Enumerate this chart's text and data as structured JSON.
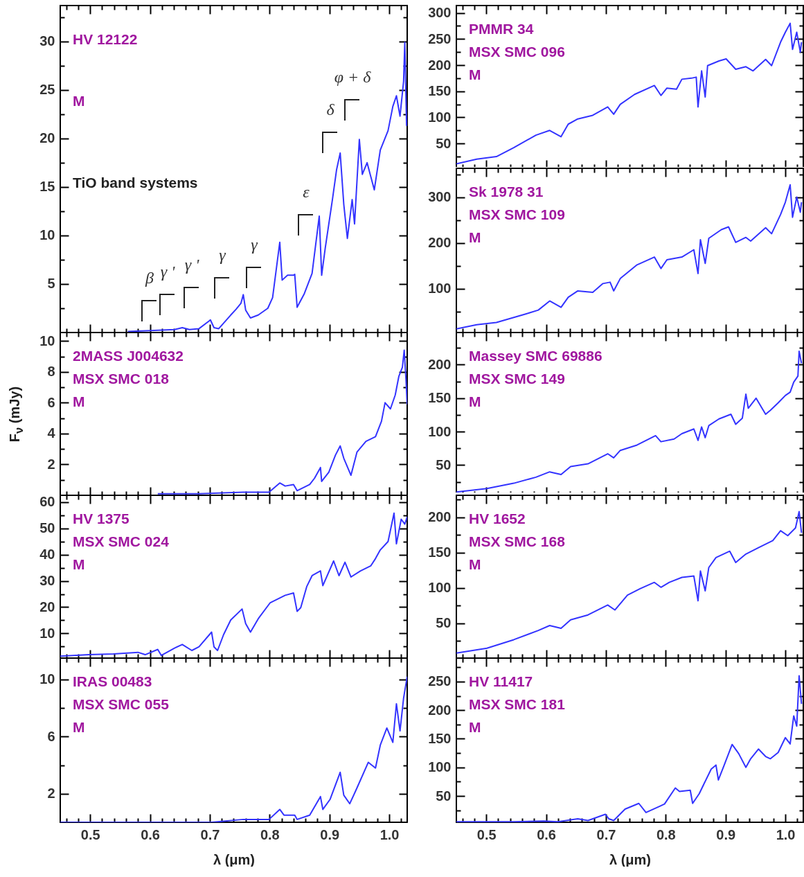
{
  "chart_data": [
    {
      "type": "line",
      "annotations": [
        "HV 12122",
        "M",
        "TiO band systems",
        "β",
        "γ '",
        "γ '",
        "γ",
        "γ",
        "ε",
        "δ",
        "φ + δ"
      ],
      "x": [
        0.563,
        0.6,
        0.641,
        0.654,
        0.666,
        0.682,
        0.699,
        0.701,
        0.707,
        0.715,
        0.735,
        0.744,
        0.752,
        0.756,
        0.76,
        0.768,
        0.781,
        0.797,
        0.805,
        0.817,
        0.821,
        0.83,
        0.84,
        0.842,
        0.846,
        0.858,
        0.871,
        0.883,
        0.887,
        0.893,
        0.905,
        0.912,
        0.918,
        0.924,
        0.93,
        0.938,
        0.942,
        0.95,
        0.955,
        0.963,
        0.975,
        0.985,
        0.998,
        1.006,
        1.012,
        1.018,
        1.024,
        1.026,
        1.029
      ],
      "series": [
        {
          "color": "#3333ff",
          "values": [
            0.1,
            0.2,
            0.3,
            0.5,
            0.3,
            0.4,
            1.2,
            1.3,
            0.5,
            0.4,
            1.8,
            2.4,
            3.0,
            3.9,
            2.3,
            1.5,
            1.8,
            2.5,
            3.6,
            9.3,
            5.4,
            5.9,
            5.9,
            6.0,
            2.6,
            4.0,
            6.1,
            12.0,
            5.9,
            8.7,
            13.7,
            16.8,
            18.5,
            13.2,
            9.7,
            13.7,
            11.2,
            19.9,
            16.3,
            17.5,
            14.7,
            18.8,
            20.8,
            23.3,
            24.4,
            22.3,
            25.9,
            29.9,
            21.3
          ]
        }
      ],
      "xlim": [
        0.45,
        1.03
      ],
      "ylim": [
        0,
        33.7
      ],
      "xticks": [
        {
          "value": 0.46,
          "label": null
        },
        {
          "value": 0.48,
          "label": null
        },
        0.5,
        {
          "value": 0.52,
          "label": null
        },
        {
          "value": 0.54,
          "label": null
        },
        {
          "value": 0.56,
          "label": null
        },
        {
          "value": 0.58,
          "label": null
        },
        0.6,
        {
          "value": 0.62,
          "label": null
        },
        {
          "value": 0.64,
          "label": null
        },
        {
          "value": 0.66,
          "label": null
        },
        {
          "value": 0.68,
          "label": null
        },
        0.7,
        {
          "value": 0.72,
          "label": null
        },
        {
          "value": 0.74,
          "label": null
        },
        {
          "value": 0.76,
          "label": null
        },
        {
          "value": 0.78,
          "label": null
        },
        0.8,
        {
          "value": 0.82,
          "label": null
        },
        {
          "value": 0.84,
          "label": null
        },
        {
          "value": 0.86,
          "label": null
        },
        {
          "value": 0.88,
          "label": null
        },
        0.9,
        {
          "value": 0.92,
          "label": null
        },
        {
          "value": 0.94,
          "label": null
        },
        {
          "value": 0.96,
          "label": null
        },
        {
          "value": 0.98,
          "label": null
        },
        1,
        {
          "value": 1.02,
          "label": null
        }
      ],
      "yticks": [
        {
          "value": 2.5,
          "label": null
        },
        5,
        {
          "value": 7.5,
          "label": null
        },
        10,
        {
          "value": 12.5,
          "label": null
        },
        15,
        {
          "value": 17.5,
          "label": null
        },
        20,
        {
          "value": 22.5,
          "label": null
        },
        25,
        {
          "value": 27.5,
          "label": null
        },
        30,
        {
          "value": 32.5,
          "label": null
        }
      ],
      "tick_labels": "y"
    },
    {
      "type": "line",
      "annotations": [
        "PMMR 34",
        "MSX SMC 096",
        "M"
      ],
      "x": [
        0.45,
        0.484,
        0.517,
        0.546,
        0.583,
        0.606,
        0.625,
        0.637,
        0.653,
        0.678,
        0.703,
        0.713,
        0.724,
        0.748,
        0.781,
        0.792,
        0.802,
        0.818,
        0.827,
        0.843,
        0.851,
        0.854,
        0.86,
        0.866,
        0.87,
        0.889,
        0.901,
        0.917,
        0.934,
        0.946,
        0.967,
        0.977,
        0.992,
        1.0,
        1.008,
        1.012,
        1.019,
        1.025,
        1.027
      ],
      "series": [
        {
          "color": "#3333ff",
          "values": [
            11,
            20,
            25,
            42,
            66,
            75,
            63,
            87,
            97,
            104,
            120,
            106,
            125,
            144,
            161,
            142,
            156,
            154,
            173,
            175,
            177,
            120,
            189,
            139,
            199,
            208,
            212,
            192,
            197,
            189,
            211,
            199,
            244,
            263,
            280,
            230,
            263,
            225,
            244
          ]
        }
      ],
      "xlim": [
        0.45,
        1.03
      ],
      "ylim": [
        2.5,
        314
      ],
      "xticks": [
        {
          "value": 0.46,
          "label": null
        },
        {
          "value": 0.48,
          "label": null
        },
        0.5,
        {
          "value": 0.52,
          "label": null
        },
        {
          "value": 0.54,
          "label": null
        },
        {
          "value": 0.56,
          "label": null
        },
        {
          "value": 0.58,
          "label": null
        },
        0.6,
        {
          "value": 0.62,
          "label": null
        },
        {
          "value": 0.64,
          "label": null
        },
        {
          "value": 0.66,
          "label": null
        },
        {
          "value": 0.68,
          "label": null
        },
        0.7,
        {
          "value": 0.72,
          "label": null
        },
        {
          "value": 0.74,
          "label": null
        },
        {
          "value": 0.76,
          "label": null
        },
        {
          "value": 0.78,
          "label": null
        },
        0.8,
        {
          "value": 0.82,
          "label": null
        },
        {
          "value": 0.84,
          "label": null
        },
        {
          "value": 0.86,
          "label": null
        },
        {
          "value": 0.88,
          "label": null
        },
        0.9,
        {
          "value": 0.92,
          "label": null
        },
        {
          "value": 0.94,
          "label": null
        },
        {
          "value": 0.96,
          "label": null
        },
        {
          "value": 0.98,
          "label": null
        },
        1,
        {
          "value": 1.02,
          "label": null
        }
      ],
      "yticks": [
        {
          "value": 25,
          "label": null
        },
        50,
        {
          "value": 75,
          "label": null
        },
        100,
        {
          "value": 125,
          "label": null
        },
        150,
        {
          "value": 175,
          "label": null
        },
        200,
        {
          "value": 225,
          "label": null
        },
        250,
        {
          "value": 275,
          "label": null
        },
        300
      ],
      "tick_labels": "y"
    },
    {
      "type": "line",
      "annotations": [
        "Sk 1978 31",
        "MSX SMC 109",
        "M"
      ],
      "x": [
        0.45,
        0.484,
        0.517,
        0.567,
        0.587,
        0.606,
        0.625,
        0.637,
        0.653,
        0.678,
        0.695,
        0.707,
        0.713,
        0.724,
        0.752,
        0.781,
        0.792,
        0.802,
        0.827,
        0.847,
        0.854,
        0.858,
        0.866,
        0.872,
        0.893,
        0.905,
        0.917,
        0.934,
        0.942,
        0.967,
        0.977,
        0.992,
        1.0,
        1.008,
        1.012,
        1.019,
        1.025,
        1.027
      ],
      "series": [
        {
          "color": "#3333ff",
          "values": [
            12,
            21,
            26,
            45,
            53,
            73,
            59,
            81,
            95,
            92,
            111,
            114,
            95,
            122,
            152,
            169,
            144,
            163,
            169,
            185,
            133,
            207,
            155,
            210,
            229,
            235,
            201,
            212,
            204,
            233,
            220,
            262,
            289,
            327,
            256,
            300,
            267,
            289
          ]
        }
      ],
      "xlim": [
        0.45,
        1.03
      ],
      "ylim": [
        4,
        363
      ],
      "xticks": [
        {
          "value": 0.46,
          "label": null
        },
        {
          "value": 0.48,
          "label": null
        },
        0.5,
        {
          "value": 0.52,
          "label": null
        },
        {
          "value": 0.54,
          "label": null
        },
        {
          "value": 0.56,
          "label": null
        },
        {
          "value": 0.58,
          "label": null
        },
        0.6,
        {
          "value": 0.62,
          "label": null
        },
        {
          "value": 0.64,
          "label": null
        },
        {
          "value": 0.66,
          "label": null
        },
        {
          "value": 0.68,
          "label": null
        },
        0.7,
        {
          "value": 0.72,
          "label": null
        },
        {
          "value": 0.74,
          "label": null
        },
        {
          "value": 0.76,
          "label": null
        },
        {
          "value": 0.78,
          "label": null
        },
        0.8,
        {
          "value": 0.82,
          "label": null
        },
        {
          "value": 0.84,
          "label": null
        },
        {
          "value": 0.86,
          "label": null
        },
        {
          "value": 0.88,
          "label": null
        },
        0.9,
        {
          "value": 0.92,
          "label": null
        },
        {
          "value": 0.94,
          "label": null
        },
        {
          "value": 0.96,
          "label": null
        },
        {
          "value": 0.98,
          "label": null
        },
        1,
        {
          "value": 1.02,
          "label": null
        }
      ],
      "yticks": [
        {
          "value": 50,
          "label": null
        },
        100,
        {
          "value": 150,
          "label": null
        },
        200,
        {
          "value": 250,
          "label": null
        },
        300,
        {
          "value": 350,
          "label": null
        }
      ],
      "tick_labels": "y"
    },
    {
      "type": "line",
      "annotations": [
        "2MASS J004632",
        "MSX SMC 018",
        "M"
      ],
      "ylabel": "F$_{ν}$ (mJy)",
      "x": [
        0.613,
        0.682,
        0.756,
        0.781,
        0.799,
        0.817,
        0.826,
        0.84,
        0.846,
        0.867,
        0.875,
        0.885,
        0.887,
        0.899,
        0.91,
        0.918,
        0.924,
        0.936,
        0.946,
        0.961,
        0.977,
        0.987,
        0.993,
        1.002,
        1.01,
        1.016,
        1.022,
        1.025,
        1.028,
        1.03
      ],
      "series": [
        {
          "color": "#3333ff",
          "values": [
            0.1,
            0.1,
            0.2,
            0.2,
            0.2,
            0.8,
            0.6,
            0.7,
            0.3,
            0.7,
            1.1,
            1.8,
            0.9,
            1.5,
            2.6,
            3.2,
            2.4,
            1.3,
            2.8,
            3.5,
            3.8,
            4.8,
            6.0,
            5.6,
            6.5,
            7.7,
            8.3,
            9.4,
            7.5,
            5.9
          ]
        }
      ],
      "xlim": [
        0.45,
        1.03
      ],
      "ylim": [
        0,
        10.55
      ],
      "xticks": [
        {
          "value": 0.46,
          "label": null
        },
        {
          "value": 0.48,
          "label": null
        },
        0.5,
        {
          "value": 0.52,
          "label": null
        },
        {
          "value": 0.54,
          "label": null
        },
        {
          "value": 0.56,
          "label": null
        },
        {
          "value": 0.58,
          "label": null
        },
        0.6,
        {
          "value": 0.62,
          "label": null
        },
        {
          "value": 0.64,
          "label": null
        },
        {
          "value": 0.66,
          "label": null
        },
        {
          "value": 0.68,
          "label": null
        },
        0.7,
        {
          "value": 0.72,
          "label": null
        },
        {
          "value": 0.74,
          "label": null
        },
        {
          "value": 0.76,
          "label": null
        },
        {
          "value": 0.78,
          "label": null
        },
        0.8,
        {
          "value": 0.82,
          "label": null
        },
        {
          "value": 0.84,
          "label": null
        },
        {
          "value": 0.86,
          "label": null
        },
        {
          "value": 0.88,
          "label": null
        },
        0.9,
        {
          "value": 0.92,
          "label": null
        },
        {
          "value": 0.94,
          "label": null
        },
        {
          "value": 0.96,
          "label": null
        },
        {
          "value": 0.98,
          "label": null
        },
        1,
        {
          "value": 1.02,
          "label": null
        }
      ],
      "yticks": [
        {
          "value": 1,
          "label": null
        },
        2,
        {
          "value": 3,
          "label": null
        },
        4,
        {
          "value": 5,
          "label": null
        },
        6,
        {
          "value": 7,
          "label": null
        },
        8,
        {
          "value": 9,
          "label": null
        },
        10
      ],
      "tick_labels": "y"
    },
    {
      "type": "line",
      "annotations": [
        "Massey SMC 69886",
        "MSX SMC 149",
        "M"
      ],
      "x": [
        0.45,
        0.501,
        0.546,
        0.583,
        0.606,
        0.625,
        0.641,
        0.67,
        0.703,
        0.713,
        0.724,
        0.752,
        0.783,
        0.792,
        0.814,
        0.827,
        0.847,
        0.854,
        0.86,
        0.866,
        0.872,
        0.889,
        0.909,
        0.917,
        0.928,
        0.934,
        0.938,
        0.951,
        0.967,
        0.975,
        0.988,
        1.0,
        1.008,
        1.014,
        1.021,
        1.023,
        1.027
      ],
      "series": [
        {
          "color": "#3333ff",
          "values": [
            10,
            15,
            23,
            32,
            40,
            36,
            48,
            52,
            67,
            61,
            72,
            80,
            94,
            85,
            89,
            97,
            104,
            87,
            107,
            91,
            109,
            119,
            126,
            111,
            120,
            156,
            135,
            150,
            126,
            132,
            143,
            154,
            159,
            174,
            183,
            220,
            202
          ]
        }
      ],
      "xlim": [
        0.45,
        1.03
      ],
      "ylim": [
        5,
        248
      ],
      "xticks": [
        {
          "value": 0.46,
          "label": null
        },
        {
          "value": 0.48,
          "label": null
        },
        0.5,
        {
          "value": 0.52,
          "label": null
        },
        {
          "value": 0.54,
          "label": null
        },
        {
          "value": 0.56,
          "label": null
        },
        {
          "value": 0.58,
          "label": null
        },
        0.6,
        {
          "value": 0.62,
          "label": null
        },
        {
          "value": 0.64,
          "label": null
        },
        {
          "value": 0.66,
          "label": null
        },
        {
          "value": 0.68,
          "label": null
        },
        0.7,
        {
          "value": 0.72,
          "label": null
        },
        {
          "value": 0.74,
          "label": null
        },
        {
          "value": 0.76,
          "label": null
        },
        {
          "value": 0.78,
          "label": null
        },
        0.8,
        {
          "value": 0.82,
          "label": null
        },
        {
          "value": 0.84,
          "label": null
        },
        {
          "value": 0.86,
          "label": null
        },
        {
          "value": 0.88,
          "label": null
        },
        0.9,
        {
          "value": 0.92,
          "label": null
        },
        {
          "value": 0.94,
          "label": null
        },
        {
          "value": 0.96,
          "label": null
        },
        {
          "value": 0.98,
          "label": null
        },
        1,
        {
          "value": 1.02,
          "label": null
        }
      ],
      "yticks": [
        {
          "value": 25,
          "label": null
        },
        50,
        {
          "value": 75,
          "label": null
        },
        100,
        {
          "value": 125,
          "label": null
        },
        150,
        {
          "value": 175,
          "label": null
        },
        200,
        {
          "value": 225,
          "label": null
        }
      ],
      "tick_labels": "y"
    },
    {
      "type": "line",
      "annotations": [
        "HV 1375",
        "MSX SMC 024",
        "M"
      ],
      "x": [
        0.45,
        0.498,
        0.539,
        0.58,
        0.592,
        0.613,
        0.619,
        0.641,
        0.654,
        0.67,
        0.682,
        0.703,
        0.707,
        0.713,
        0.723,
        0.735,
        0.754,
        0.76,
        0.768,
        0.781,
        0.801,
        0.826,
        0.84,
        0.846,
        0.852,
        0.862,
        0.871,
        0.885,
        0.889,
        0.907,
        0.916,
        0.926,
        0.936,
        0.952,
        0.969,
        0.977,
        0.985,
        0.998,
        1.008,
        1.012,
        1.02,
        1.026,
        1.03
      ],
      "series": [
        {
          "color": "#3333ff",
          "values": [
            1.3,
            1.9,
            2.2,
            2.8,
            1.9,
            3.9,
            1.6,
            4.4,
            5.8,
            3.5,
            4.9,
            10.5,
            4.9,
            3.5,
            9.5,
            15.1,
            19.3,
            13.7,
            10.5,
            15.6,
            21.7,
            24.5,
            25.4,
            18.4,
            19.8,
            27.8,
            32.0,
            33.8,
            28.2,
            37.6,
            32.0,
            37.1,
            31.5,
            33.8,
            35.7,
            38.5,
            41.8,
            45.0,
            55.8,
            44.1,
            53.5,
            51.6,
            54.4
          ]
        }
      ],
      "xlim": [
        0.45,
        1.03
      ],
      "ylim": [
        0.6,
        62.6
      ],
      "xticks": [
        {
          "value": 0.46,
          "label": null
        },
        {
          "value": 0.48,
          "label": null
        },
        0.5,
        {
          "value": 0.52,
          "label": null
        },
        {
          "value": 0.54,
          "label": null
        },
        {
          "value": 0.56,
          "label": null
        },
        {
          "value": 0.58,
          "label": null
        },
        0.6,
        {
          "value": 0.62,
          "label": null
        },
        {
          "value": 0.64,
          "label": null
        },
        {
          "value": 0.66,
          "label": null
        },
        {
          "value": 0.68,
          "label": null
        },
        0.7,
        {
          "value": 0.72,
          "label": null
        },
        {
          "value": 0.74,
          "label": null
        },
        {
          "value": 0.76,
          "label": null
        },
        {
          "value": 0.78,
          "label": null
        },
        0.8,
        {
          "value": 0.82,
          "label": null
        },
        {
          "value": 0.84,
          "label": null
        },
        {
          "value": 0.86,
          "label": null
        },
        {
          "value": 0.88,
          "label": null
        },
        0.9,
        {
          "value": 0.92,
          "label": null
        },
        {
          "value": 0.94,
          "label": null
        },
        {
          "value": 0.96,
          "label": null
        },
        {
          "value": 0.98,
          "label": null
        },
        1,
        {
          "value": 1.02,
          "label": null
        }
      ],
      "yticks": [
        {
          "value": 5,
          "label": null
        },
        10,
        {
          "value": 15,
          "label": null
        },
        20,
        {
          "value": 25,
          "label": null
        },
        30,
        {
          "value": 35,
          "label": null
        },
        40,
        {
          "value": 45,
          "label": null
        },
        50,
        {
          "value": 55,
          "label": null
        },
        60
      ],
      "tick_labels": "y"
    },
    {
      "type": "line",
      "annotations": [
        "HV 1652",
        "MSX SMC 168",
        "M"
      ],
      "x": [
        0.45,
        0.501,
        0.546,
        0.587,
        0.606,
        0.625,
        0.641,
        0.67,
        0.703,
        0.715,
        0.736,
        0.757,
        0.781,
        0.792,
        0.806,
        0.827,
        0.847,
        0.854,
        0.858,
        0.866,
        0.872,
        0.884,
        0.907,
        0.917,
        0.934,
        0.955,
        0.979,
        0.992,
        1.004,
        1.017,
        1.023,
        1.027
      ],
      "series": [
        {
          "color": "#3333ff",
          "values": [
            8,
            15,
            27,
            40,
            47,
            43,
            55,
            62,
            76,
            69,
            90,
            99,
            108,
            101,
            108,
            115,
            117,
            82,
            124,
            96,
            129,
            143,
            152,
            136,
            148,
            157,
            167,
            181,
            174,
            185,
            208,
            178
          ]
        }
      ],
      "xlim": [
        0.45,
        1.03
      ],
      "ylim": [
        1,
        231
      ],
      "xticks": [
        {
          "value": 0.46,
          "label": null
        },
        {
          "value": 0.48,
          "label": null
        },
        0.5,
        {
          "value": 0.52,
          "label": null
        },
        {
          "value": 0.54,
          "label": null
        },
        {
          "value": 0.56,
          "label": null
        },
        {
          "value": 0.58,
          "label": null
        },
        0.6,
        {
          "value": 0.62,
          "label": null
        },
        {
          "value": 0.64,
          "label": null
        },
        {
          "value": 0.66,
          "label": null
        },
        {
          "value": 0.68,
          "label": null
        },
        0.7,
        {
          "value": 0.72,
          "label": null
        },
        {
          "value": 0.74,
          "label": null
        },
        {
          "value": 0.76,
          "label": null
        },
        {
          "value": 0.78,
          "label": null
        },
        0.8,
        {
          "value": 0.82,
          "label": null
        },
        {
          "value": 0.84,
          "label": null
        },
        {
          "value": 0.86,
          "label": null
        },
        {
          "value": 0.88,
          "label": null
        },
        0.9,
        {
          "value": 0.92,
          "label": null
        },
        {
          "value": 0.94,
          "label": null
        },
        {
          "value": 0.96,
          "label": null
        },
        {
          "value": 0.98,
          "label": null
        },
        1,
        {
          "value": 1.02,
          "label": null
        }
      ],
      "yticks": [
        {
          "value": 25,
          "label": null
        },
        50,
        {
          "value": 75,
          "label": null
        },
        100,
        {
          "value": 125,
          "label": null
        },
        150,
        {
          "value": 175,
          "label": null
        },
        200,
        {
          "value": 225,
          "label": null
        }
      ],
      "tick_labels": "y"
    },
    {
      "type": "line",
      "annotations": [
        "IRAS 00483",
        "MSX SMC 055",
        "M"
      ],
      "xlabel": "λ (μm)",
      "x": [
        0.45,
        0.641,
        0.703,
        0.756,
        0.781,
        0.799,
        0.817,
        0.824,
        0.842,
        0.846,
        0.867,
        0.885,
        0.889,
        0.901,
        0.918,
        0.924,
        0.934,
        0.946,
        0.965,
        0.977,
        0.985,
        0.996,
        1.006,
        1.012,
        1.018,
        1.024,
        1.03
      ],
      "series": [
        {
          "color": "#3333ff",
          "values": [
            0,
            0,
            0,
            0.2,
            0.2,
            0.2,
            0.9,
            0.5,
            0.5,
            0.2,
            0.5,
            1.8,
            0.9,
            1.6,
            3.5,
            1.9,
            1.3,
            2.4,
            4.2,
            3.8,
            5.4,
            6.6,
            5.6,
            8.3,
            6.4,
            8.7,
            10.2
          ]
        }
      ],
      "xlim": [
        0.45,
        1.03
      ],
      "ylim": [
        0,
        11.5
      ],
      "xticks": [
        {
          "value": 0.46,
          "label": null
        },
        {
          "value": 0.48,
          "label": null
        },
        0.5,
        {
          "value": 0.52,
          "label": null
        },
        {
          "value": 0.54,
          "label": null
        },
        {
          "value": 0.56,
          "label": null
        },
        {
          "value": 0.58,
          "label": null
        },
        0.6,
        {
          "value": 0.62,
          "label": null
        },
        {
          "value": 0.64,
          "label": null
        },
        {
          "value": 0.66,
          "label": null
        },
        {
          "value": 0.68,
          "label": null
        },
        0.7,
        {
          "value": 0.72,
          "label": null
        },
        {
          "value": 0.74,
          "label": null
        },
        {
          "value": 0.76,
          "label": null
        },
        {
          "value": 0.78,
          "label": null
        },
        0.8,
        {
          "value": 0.82,
          "label": null
        },
        {
          "value": 0.84,
          "label": null
        },
        {
          "value": 0.86,
          "label": null
        },
        {
          "value": 0.88,
          "label": null
        },
        0.9,
        {
          "value": 0.92,
          "label": null
        },
        {
          "value": 0.94,
          "label": null
        },
        {
          "value": 0.96,
          "label": null
        },
        {
          "value": 0.98,
          "label": null
        },
        {
          "value": 1,
          "label": "1.0"
        },
        {
          "value": 1.02,
          "label": null
        }
      ],
      "yticks": [
        2,
        {
          "value": 4,
          "label": null
        },
        6,
        {
          "value": 8,
          "label": null
        },
        10
      ]
    },
    {
      "type": "line",
      "annotations": [
        "HV 11417",
        "MSX SMC 181",
        "M"
      ],
      "xlabel": "λ (μm)",
      "x": [
        0.45,
        0.546,
        0.596,
        0.62,
        0.653,
        0.67,
        0.699,
        0.705,
        0.713,
        0.732,
        0.755,
        0.767,
        0.79,
        0.798,
        0.816,
        0.823,
        0.841,
        0.845,
        0.856,
        0.876,
        0.884,
        0.888,
        0.897,
        0.911,
        0.922,
        0.934,
        0.942,
        0.955,
        0.967,
        0.975,
        0.988,
        1.0,
        1.008,
        1.014,
        1.019,
        1.023,
        1.027
      ],
      "series": [
        {
          "color": "#3333ff",
          "values": [
            5,
            5,
            6,
            5,
            10,
            7,
            18,
            10,
            7,
            27,
            37,
            21,
            32,
            36,
            64,
            58,
            60,
            37,
            54,
            97,
            104,
            78,
            102,
            140,
            124,
            100,
            115,
            132,
            119,
            115,
            126,
            152,
            141,
            190,
            172,
            260,
            211
          ]
        }
      ],
      "xlim": [
        0.45,
        1.03
      ],
      "ylim": [
        4,
        291
      ],
      "xticks": [
        {
          "value": 0.46,
          "label": null
        },
        {
          "value": 0.48,
          "label": null
        },
        0.5,
        {
          "value": 0.52,
          "label": null
        },
        {
          "value": 0.54,
          "label": null
        },
        {
          "value": 0.56,
          "label": null
        },
        {
          "value": 0.58,
          "label": null
        },
        0.6,
        {
          "value": 0.62,
          "label": null
        },
        {
          "value": 0.64,
          "label": null
        },
        {
          "value": 0.66,
          "label": null
        },
        {
          "value": 0.68,
          "label": null
        },
        0.7,
        {
          "value": 0.72,
          "label": null
        },
        {
          "value": 0.74,
          "label": null
        },
        {
          "value": 0.76,
          "label": null
        },
        {
          "value": 0.78,
          "label": null
        },
        0.8,
        {
          "value": 0.82,
          "label": null
        },
        {
          "value": 0.84,
          "label": null
        },
        {
          "value": 0.86,
          "label": null
        },
        {
          "value": 0.88,
          "label": null
        },
        0.9,
        {
          "value": 0.92,
          "label": null
        },
        {
          "value": 0.94,
          "label": null
        },
        {
          "value": 0.96,
          "label": null
        },
        {
          "value": 0.98,
          "label": null
        },
        {
          "value": 1,
          "label": "1.0"
        },
        {
          "value": 1.02,
          "label": null
        }
      ],
      "yticks": [
        {
          "value": 25,
          "label": null
        },
        50,
        {
          "value": 75,
          "label": null
        },
        100,
        {
          "value": 125,
          "label": null
        },
        150,
        {
          "value": 175,
          "label": null
        },
        200,
        {
          "value": 225,
          "label": null
        },
        250,
        {
          "value": 275,
          "label": null
        }
      ]
    }
  ]
}
